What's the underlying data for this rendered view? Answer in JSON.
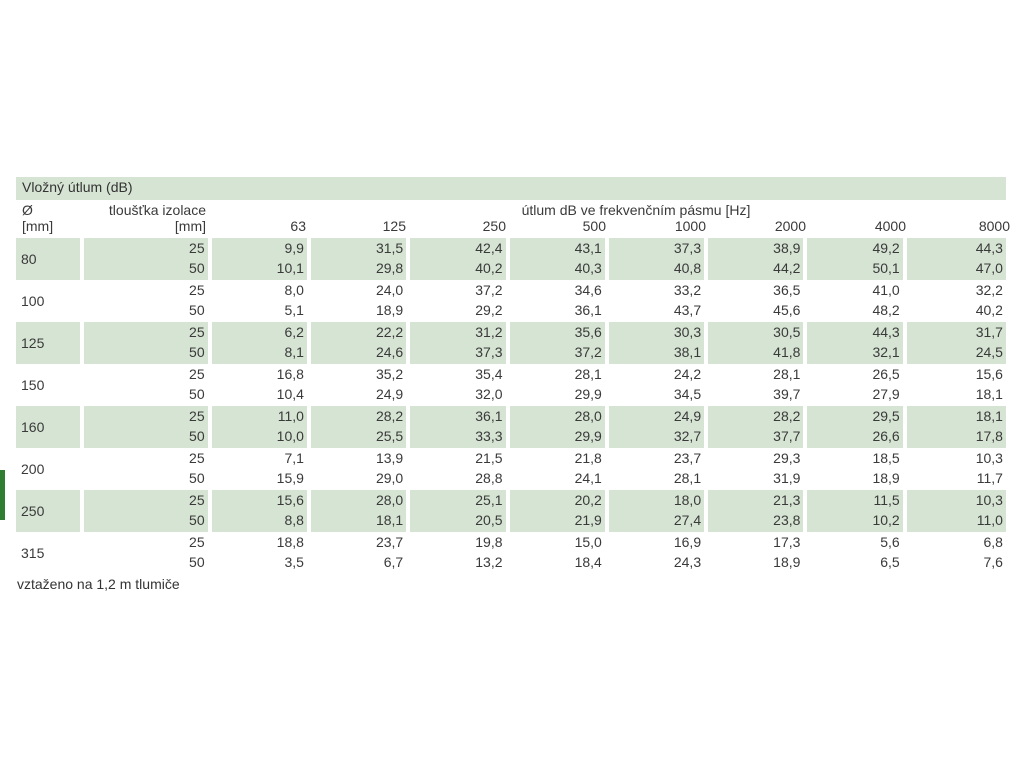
{
  "title": "Vložný útlum (dB)",
  "headers": {
    "diameter_symbol": "Ø",
    "diameter_unit": "[mm]",
    "thickness_label": "tloušťka izolace",
    "thickness_unit": "[mm]",
    "freq_span_label": "útlum dB ve frekvenčním pásmu [Hz]",
    "frequencies": [
      "63",
      "125",
      "250",
      "500",
      "1000",
      "2000",
      "4000",
      "8000"
    ]
  },
  "rows": [
    {
      "diameter": "80",
      "thickness": [
        "25",
        "50"
      ],
      "values": [
        [
          "9,9",
          "31,5",
          "42,4",
          "43,1",
          "37,3",
          "38,9",
          "49,2",
          "44,3"
        ],
        [
          "10,1",
          "29,8",
          "40,2",
          "40,3",
          "40,8",
          "44,2",
          "50,1",
          "47,0"
        ]
      ]
    },
    {
      "diameter": "100",
      "thickness": [
        "25",
        "50"
      ],
      "values": [
        [
          "8,0",
          "24,0",
          "37,2",
          "34,6",
          "33,2",
          "36,5",
          "41,0",
          "32,2"
        ],
        [
          "5,1",
          "18,9",
          "29,2",
          "36,1",
          "43,7",
          "45,6",
          "48,2",
          "40,2"
        ]
      ]
    },
    {
      "diameter": "125",
      "thickness": [
        "25",
        "50"
      ],
      "values": [
        [
          "6,2",
          "22,2",
          "31,2",
          "35,6",
          "30,3",
          "30,5",
          "44,3",
          "31,7"
        ],
        [
          "8,1",
          "24,6",
          "37,3",
          "37,2",
          "38,1",
          "41,8",
          "32,1",
          "24,5"
        ]
      ]
    },
    {
      "diameter": "150",
      "thickness": [
        "25",
        "50"
      ],
      "values": [
        [
          "16,8",
          "35,2",
          "35,4",
          "28,1",
          "24,2",
          "28,1",
          "26,5",
          "15,6"
        ],
        [
          "10,4",
          "24,9",
          "32,0",
          "29,9",
          "34,5",
          "39,7",
          "27,9",
          "18,1"
        ]
      ]
    },
    {
      "diameter": "160",
      "thickness": [
        "25",
        "50"
      ],
      "values": [
        [
          "11,0",
          "28,2",
          "36,1",
          "28,0",
          "24,9",
          "28,2",
          "29,5",
          "18,1"
        ],
        [
          "10,0",
          "25,5",
          "33,3",
          "29,9",
          "32,7",
          "37,7",
          "26,6",
          "17,8"
        ]
      ]
    },
    {
      "diameter": "200",
      "thickness": [
        "25",
        "50"
      ],
      "values": [
        [
          "7,1",
          "13,9",
          "21,5",
          "21,8",
          "23,7",
          "29,3",
          "18,5",
          "10,3"
        ],
        [
          "15,9",
          "29,0",
          "28,8",
          "24,1",
          "28,1",
          "31,9",
          "18,9",
          "11,7"
        ]
      ]
    },
    {
      "diameter": "250",
      "thickness": [
        "25",
        "50"
      ],
      "values": [
        [
          "15,6",
          "28,0",
          "25,1",
          "20,2",
          "18,0",
          "21,3",
          "11,5",
          "10,3"
        ],
        [
          "8,8",
          "18,1",
          "20,5",
          "21,9",
          "27,4",
          "23,8",
          "10,2",
          "11,0"
        ]
      ]
    },
    {
      "diameter": "315",
      "thickness": [
        "25",
        "50"
      ],
      "values": [
        [
          "18,8",
          "23,7",
          "19,8",
          "15,0",
          "16,9",
          "17,3",
          "5,6",
          "6,8"
        ],
        [
          "3,5",
          "6,7",
          "13,2",
          "18,4",
          "24,3",
          "18,9",
          "6,5",
          "7,6"
        ]
      ]
    }
  ],
  "note": "vztaženo na 1,2 m tlumiče",
  "colors": {
    "row_shade": "#d6e4d3",
    "accent": "#2e7d32"
  }
}
